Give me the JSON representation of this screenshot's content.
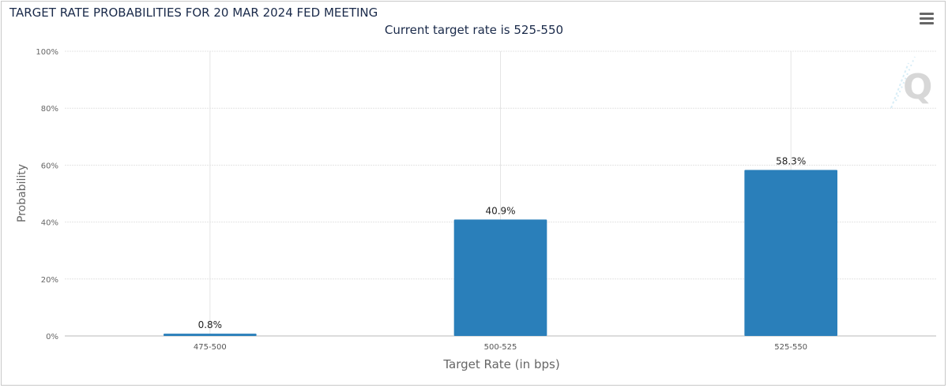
{
  "chart_data": {
    "type": "bar",
    "title": "TARGET RATE PROBABILITIES FOR 20 MAR 2024 FED MEETING",
    "subtitle": "Current target rate is 525-550",
    "categories": [
      "475-500",
      "500-525",
      "525-550"
    ],
    "values": [
      0.8,
      40.9,
      58.3
    ],
    "data_labels": [
      "0.8%",
      "40.9%",
      "58.3%"
    ],
    "xlabel": "Target Rate (in bps)",
    "ylabel": "Probability",
    "ylim": [
      0,
      100
    ],
    "yticks": [
      0,
      20,
      40,
      60,
      80,
      100
    ],
    "ytick_labels": [
      "0%",
      "20%",
      "40%",
      "60%",
      "80%",
      "100%"
    ],
    "grid": true,
    "legend": "none",
    "bar_color": "#2a7fba"
  },
  "menu_icon": "hamburger-menu-icon",
  "watermark_icon": "q-logo-icon"
}
